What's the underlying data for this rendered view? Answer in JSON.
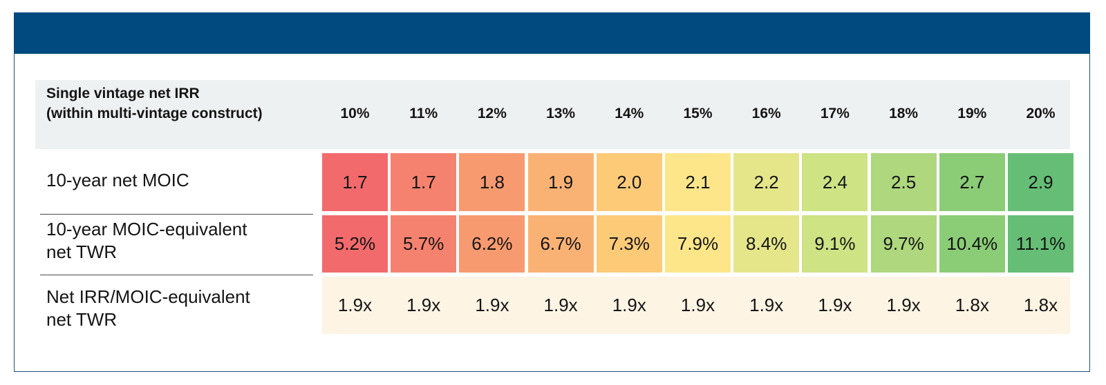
{
  "chart_data": {
    "type": "table",
    "title": "",
    "header_label": [
      "Single vintage net IRR",
      "(within multi-vintage construct)"
    ],
    "columns": [
      "10%",
      "11%",
      "12%",
      "13%",
      "14%",
      "15%",
      "16%",
      "17%",
      "18%",
      "19%",
      "20%"
    ],
    "rows": [
      {
        "label": [
          "10-year net MOIC"
        ],
        "values": [
          "1.7",
          "1.7",
          "1.8",
          "1.9",
          "2.0",
          "2.1",
          "2.2",
          "2.4",
          "2.5",
          "2.7",
          "2.9"
        ],
        "colors": [
          "#f26a6c",
          "#f5826e",
          "#f89a70",
          "#fab274",
          "#fdca78",
          "#fde68a",
          "#e5e68a",
          "#cde384",
          "#aed77e",
          "#8bcc77",
          "#66be76"
        ]
      },
      {
        "label": [
          "10-year MOIC-equivalent",
          "net TWR"
        ],
        "values": [
          "5.2%",
          "5.7%",
          "6.2%",
          "6.7%",
          "7.3%",
          "7.9%",
          "8.4%",
          "9.1%",
          "9.7%",
          "10.4%",
          "11.1%"
        ],
        "colors": [
          "#f26a6c",
          "#f5826e",
          "#f89a70",
          "#fab274",
          "#fdca78",
          "#fde68a",
          "#e5e68a",
          "#cde384",
          "#aed77e",
          "#8bcc77",
          "#66be76"
        ]
      },
      {
        "label": [
          "Net IRR/MOIC-equivalent",
          "net TWR"
        ],
        "values": [
          "1.9x",
          "1.9x",
          "1.9x",
          "1.9x",
          "1.9x",
          "1.9x",
          "1.9x",
          "1.9x",
          "1.9x",
          "1.8x",
          "1.8x"
        ],
        "colors": []
      }
    ]
  }
}
